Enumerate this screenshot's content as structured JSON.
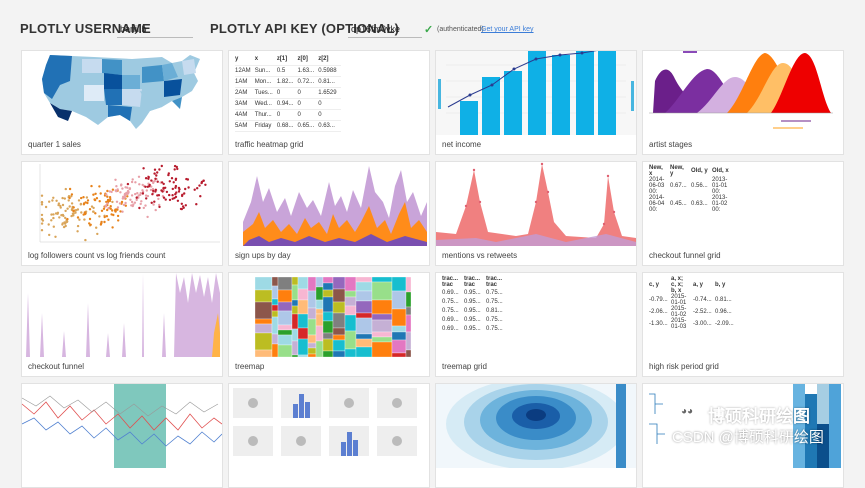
{
  "header": {
    "username_label": "PLOTLY USERNAME",
    "username_value": "benji.b",
    "apikey_label": "PLOTLY API KEY (OPTIONAL)",
    "apikey_value": "op16fm0vke",
    "auth_status": "(authenticated)",
    "get_key_link": "Get your API key"
  },
  "cards": [
    {
      "label": "quarter 1 sales"
    },
    {
      "label": "traffic heatmap grid"
    },
    {
      "label": "net income"
    },
    {
      "label": "artist stages"
    },
    {
      "label": "log followers count vs log friends count"
    },
    {
      "label": "sign ups by day"
    },
    {
      "label": "mentions vs retweets"
    },
    {
      "label": "checkout funnel grid"
    },
    {
      "label": "checkout funnel"
    },
    {
      "label": "treemap"
    },
    {
      "label": "treemap grid"
    },
    {
      "label": "high risk period grid"
    }
  ],
  "grids": {
    "traffic": {
      "headers": [
        "y",
        "x",
        "z[1]",
        "z[0]",
        "z[2]"
      ],
      "rows": [
        [
          "12AM",
          "Sun...",
          "0.5",
          "1.63...",
          "0.5988"
        ],
        [
          "1AM",
          "Mon...",
          "1.82...",
          "0.72...",
          "0.81..."
        ],
        [
          "2AM",
          "Tues...",
          "0",
          "0",
          "1.6529"
        ],
        [
          "3AM",
          "Wed...",
          "0.94...",
          "0",
          "0"
        ],
        [
          "4AM",
          "Thur...",
          "0",
          "0",
          "0"
        ],
        [
          "5AM",
          "Friday",
          "0.68...",
          "0.65...",
          "0.63..."
        ]
      ]
    },
    "checkout": {
      "headers": [
        "New, x",
        "New, y",
        "Old, y",
        "Old, x"
      ],
      "rows": [
        [
          "2014-06-03 00:",
          "0.67...",
          "0.56...",
          "2013-01-01 00:"
        ],
        [
          "2014-06-04 00:",
          "0.45...",
          "0.63...",
          "2013-01-02 00:"
        ]
      ]
    },
    "treemap": {
      "headers": [
        "trac... trac",
        "trac... trac",
        "trac... trac"
      ],
      "rows": [
        [
          "0.69...",
          "0.95...",
          "0.75..."
        ],
        [
          "0.75...",
          "0.95...",
          "0.75..."
        ],
        [
          "0.75...",
          "0.95...",
          "0.81..."
        ],
        [
          "0.69...",
          "0.95...",
          "0.75..."
        ],
        [
          "0.69...",
          "0.95...",
          "0.75..."
        ]
      ]
    },
    "risk": {
      "headers": [
        "c, y",
        "a, x; c, x; b, x",
        "a, y",
        "b, y"
      ],
      "rows": [
        [
          "-0.79...",
          "2015-01-01",
          "-0.74...",
          "0.81..."
        ],
        [
          "-2.06...",
          "2015-01-02",
          "-2.52...",
          "0.96..."
        ],
        [
          "-1.30...",
          "2015-01-03",
          "-3.00...",
          "-2.09..."
        ]
      ]
    }
  },
  "watermark": {
    "brand": "博硕科研绘图",
    "csdn": "CSDN @博硕科研绘图"
  }
}
